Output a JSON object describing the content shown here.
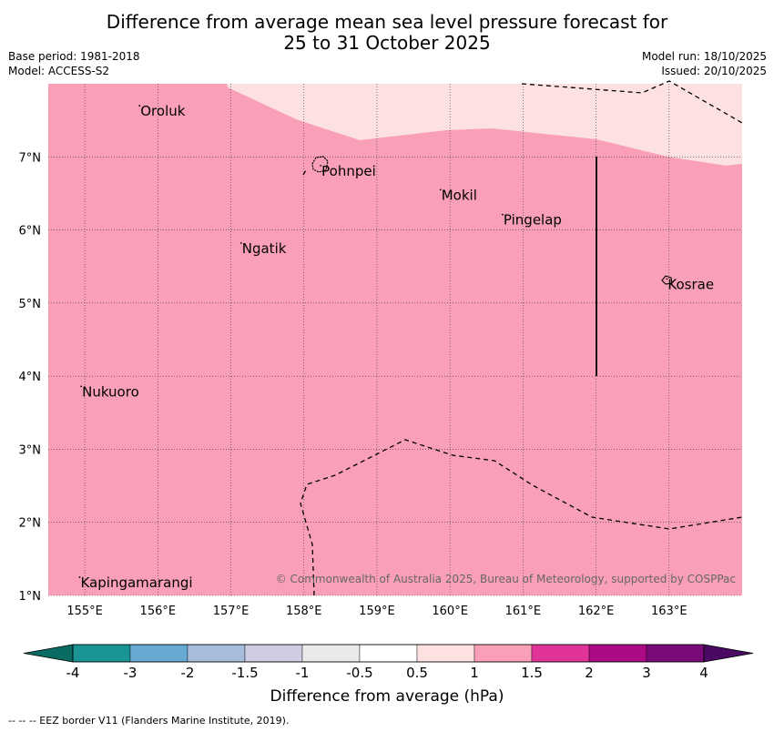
{
  "title": {
    "line1": "Difference from average mean sea level pressure forecast for",
    "line2": "25 to 31 October 2025"
  },
  "meta": {
    "base_period": "Base period: 1981-2018",
    "model": "Model: ACCESS-S2",
    "model_run": "Model run: 18/10/2025",
    "issued": "Issued: 20/10/2025"
  },
  "map": {
    "lon_range": [
      154.5,
      164.0
    ],
    "lat_range": [
      1.0,
      8.0
    ],
    "lon_ticks": [
      "155°E",
      "156°E",
      "157°E",
      "158°E",
      "159°E",
      "160°E",
      "161°E",
      "162°E",
      "163°E"
    ],
    "lat_ticks": [
      "1°N",
      "2°N",
      "3°N",
      "4°N",
      "5°N",
      "6°N",
      "7°N"
    ],
    "fill_main": "#f9a0b8",
    "fill_low": "#fde0e0",
    "places": [
      {
        "name": "Oroluk",
        "lon": 155.75,
        "lat": 7.7
      },
      {
        "name": "Pohnpei",
        "lon": 158.23,
        "lat": 6.88
      },
      {
        "name": "Mokil",
        "lon": 159.87,
        "lat": 6.55
      },
      {
        "name": "Pingelap",
        "lon": 160.72,
        "lat": 6.21
      },
      {
        "name": "Ngatik",
        "lon": 157.14,
        "lat": 5.82
      },
      {
        "name": "Kosrae",
        "lon": 162.97,
        "lat": 5.33
      },
      {
        "name": "Nukuoro",
        "lon": 154.95,
        "lat": 3.86
      },
      {
        "name": "Kapingamarangi",
        "lon": 154.93,
        "lat": 1.25
      }
    ],
    "copyright": "© Commonwealth of Australia 2025, Bureau of Meteorology, supported by COSPPac"
  },
  "colorbar": {
    "title": "Difference from average (hPa)",
    "labels": [
      "-4",
      "-3",
      "-2",
      "-1.5",
      "-1",
      "-0.5",
      "0.5",
      "1",
      "1.5",
      "2",
      "3",
      "4"
    ],
    "colors": [
      "#1a9494",
      "#66aad4",
      "#a8bcdc",
      "#cecde4",
      "#eaeaea",
      "#ffffff",
      "#fde0e0",
      "#f9a0b8",
      "#e0349a",
      "#ad0a85",
      "#7a0a7a"
    ],
    "low_extend": "#0a6b62",
    "high_extend": "#4a0a63"
  },
  "footer": "--  --  -- EEZ border V11 (Flanders Marine Institute, 2019)."
}
